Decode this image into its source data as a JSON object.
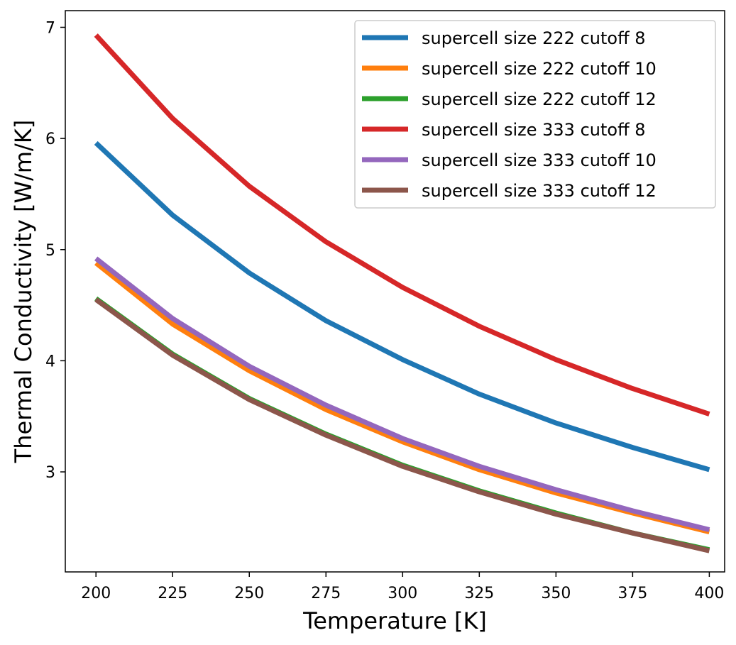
{
  "chart_data": {
    "type": "line",
    "title": "",
    "xlabel": "Temperature [K]",
    "ylabel": "Thermal Conductivity [W/m/K]",
    "xlim": [
      190,
      405
    ],
    "ylim": [
      2.1,
      7.15
    ],
    "x_ticks": [
      "200",
      "225",
      "250",
      "275",
      "300",
      "325",
      "350",
      "375",
      "400"
    ],
    "y_ticks": [
      "3",
      "4",
      "5",
      "6",
      "7"
    ],
    "grid": false,
    "legend_position": "top-right",
    "x": [
      200,
      225,
      250,
      275,
      300,
      325,
      350,
      375,
      400
    ],
    "series": [
      {
        "name": "supercell size 222 cutoff 8",
        "color": "#1f77b4",
        "values": [
          5.96,
          5.31,
          4.79,
          4.36,
          4.01,
          3.7,
          3.44,
          3.22,
          3.02
        ]
      },
      {
        "name": "supercell size 222 cutoff 10",
        "color": "#ff7f0e",
        "values": [
          4.88,
          4.33,
          3.91,
          3.56,
          3.27,
          3.02,
          2.81,
          2.63,
          2.46
        ]
      },
      {
        "name": "supercell size 222 cutoff 12",
        "color": "#2ca02c",
        "values": [
          4.56,
          4.06,
          3.66,
          3.34,
          3.06,
          2.83,
          2.63,
          2.45,
          2.3
        ]
      },
      {
        "name": "supercell size 333 cutoff 8",
        "color": "#d62728",
        "values": [
          6.93,
          6.18,
          5.57,
          5.07,
          4.66,
          4.31,
          4.01,
          3.75,
          3.52
        ]
      },
      {
        "name": "supercell size 333 cutoff 10",
        "color": "#9467bd",
        "values": [
          4.92,
          4.38,
          3.95,
          3.6,
          3.3,
          3.05,
          2.84,
          2.65,
          2.48
        ]
      },
      {
        "name": "supercell size 333 cutoff 12",
        "color": "#8c564b",
        "values": [
          4.55,
          4.05,
          3.65,
          3.33,
          3.05,
          2.82,
          2.62,
          2.45,
          2.29
        ]
      }
    ]
  }
}
